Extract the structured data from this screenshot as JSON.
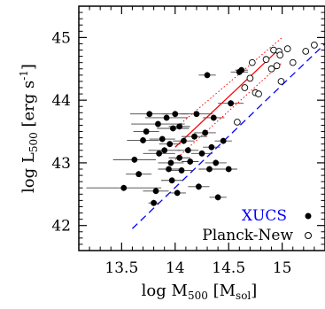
{
  "chart_data": {
    "type": "scatter",
    "title": "",
    "xlabel": {
      "main": "log M",
      "sub": "500",
      "unit": "[M",
      "unit_sub": "sol",
      "unit_end": "]"
    },
    "ylabel": {
      "main": "log L",
      "sub": "500",
      "unit": "[erg s",
      "unit_sup": "-1",
      "unit_end": "]"
    },
    "xlim": [
      13.1,
      15.4
    ],
    "ylim": [
      41.6,
      45.5
    ],
    "x_ticks": [
      13.5,
      14,
      14.5,
      15
    ],
    "x_tick_labels": [
      "13.5",
      "14",
      "14.5",
      "15"
    ],
    "y_ticks": [
      42,
      43,
      44,
      45
    ],
    "y_tick_labels": [
      "42",
      "43",
      "44",
      "45"
    ],
    "grid": false,
    "legend_position": "bottom-right",
    "series": [
      {
        "name": "XUCS",
        "color": "#0000ff",
        "marker": "filled-circle",
        "points": [
          [
            13.52,
            42.6,
            0.35
          ],
          [
            13.62,
            43.05,
            0.2
          ],
          [
            13.66,
            42.82,
            0.12
          ],
          [
            13.7,
            43.36,
            0.15
          ],
          [
            13.73,
            43.5,
            0.12
          ],
          [
            13.76,
            43.78,
            0.18
          ],
          [
            13.8,
            42.36,
            0.05
          ],
          [
            13.82,
            42.55,
            0.12
          ],
          [
            13.84,
            43.62,
            0.25
          ],
          [
            13.85,
            43.15,
            0.15
          ],
          [
            13.88,
            43.38,
            0.12
          ],
          [
            13.9,
            43.2,
            0.15
          ],
          [
            13.92,
            43.72,
            0.2
          ],
          [
            13.94,
            42.9,
            0.1
          ],
          [
            13.95,
            43.3,
            0.1
          ],
          [
            13.96,
            43.0,
            0.12
          ],
          [
            13.97,
            42.72,
            0.1
          ],
          [
            13.98,
            43.55,
            0.15
          ],
          [
            14.0,
            43.78,
            0.12
          ],
          [
            14.02,
            42.52,
            0.08
          ],
          [
            14.04,
            43.58,
            0.1
          ],
          [
            14.04,
            43.08,
            0.1
          ],
          [
            14.06,
            42.88,
            0.1
          ],
          [
            14.08,
            43.35,
            0.1
          ],
          [
            14.12,
            43.2,
            0.1
          ],
          [
            14.14,
            43.02,
            0.08
          ],
          [
            14.18,
            43.42,
            0.12
          ],
          [
            14.2,
            43.78,
            0.15
          ],
          [
            14.22,
            42.62,
            0.1
          ],
          [
            14.25,
            43.15,
            0.1
          ],
          [
            14.28,
            43.48,
            0.1
          ],
          [
            14.3,
            44.4,
            0.08
          ],
          [
            14.32,
            42.9,
            0.1
          ],
          [
            14.34,
            43.25,
            0.08
          ],
          [
            14.36,
            43.72,
            0.1
          ],
          [
            14.38,
            43.0,
            0.1
          ],
          [
            14.4,
            42.45,
            0.08
          ],
          [
            14.45,
            43.35,
            0.08
          ],
          [
            14.5,
            42.9,
            0.08
          ],
          [
            14.52,
            43.95,
            0.12
          ],
          [
            14.6,
            44.45,
            0.08
          ],
          [
            14.62,
            44.48,
            0.06
          ]
        ]
      },
      {
        "name": "Planck-New",
        "color": "#000000",
        "marker": "open-circle",
        "points": [
          [
            14.58,
            43.65
          ],
          [
            14.65,
            44.2
          ],
          [
            14.7,
            44.35
          ],
          [
            14.72,
            44.6
          ],
          [
            14.75,
            44.12
          ],
          [
            14.78,
            44.1
          ],
          [
            14.85,
            44.65
          ],
          [
            14.9,
            44.5
          ],
          [
            14.92,
            44.8
          ],
          [
            14.95,
            44.55
          ],
          [
            14.97,
            44.78
          ],
          [
            14.98,
            44.72
          ],
          [
            14.99,
            44.3
          ],
          [
            15.05,
            44.82
          ],
          [
            15.1,
            44.6
          ],
          [
            15.22,
            44.78
          ],
          [
            15.3,
            44.88
          ]
        ]
      }
    ],
    "fit_line": {
      "color": "#ff0000",
      "x": [
        14.0,
        14.95
      ],
      "y": [
        43.25,
        44.78
      ],
      "scatter_band_x": [
        14.0,
        15.0
      ],
      "scatter_band_upper": [
        43.55,
        45.0
      ],
      "scatter_band_lower": [
        43.05,
        44.6
      ]
    },
    "reference_line": {
      "color": "#0000ff",
      "style": "dashed",
      "x": [
        13.6,
        15.4
      ],
      "y": [
        41.95,
        44.9
      ]
    }
  }
}
